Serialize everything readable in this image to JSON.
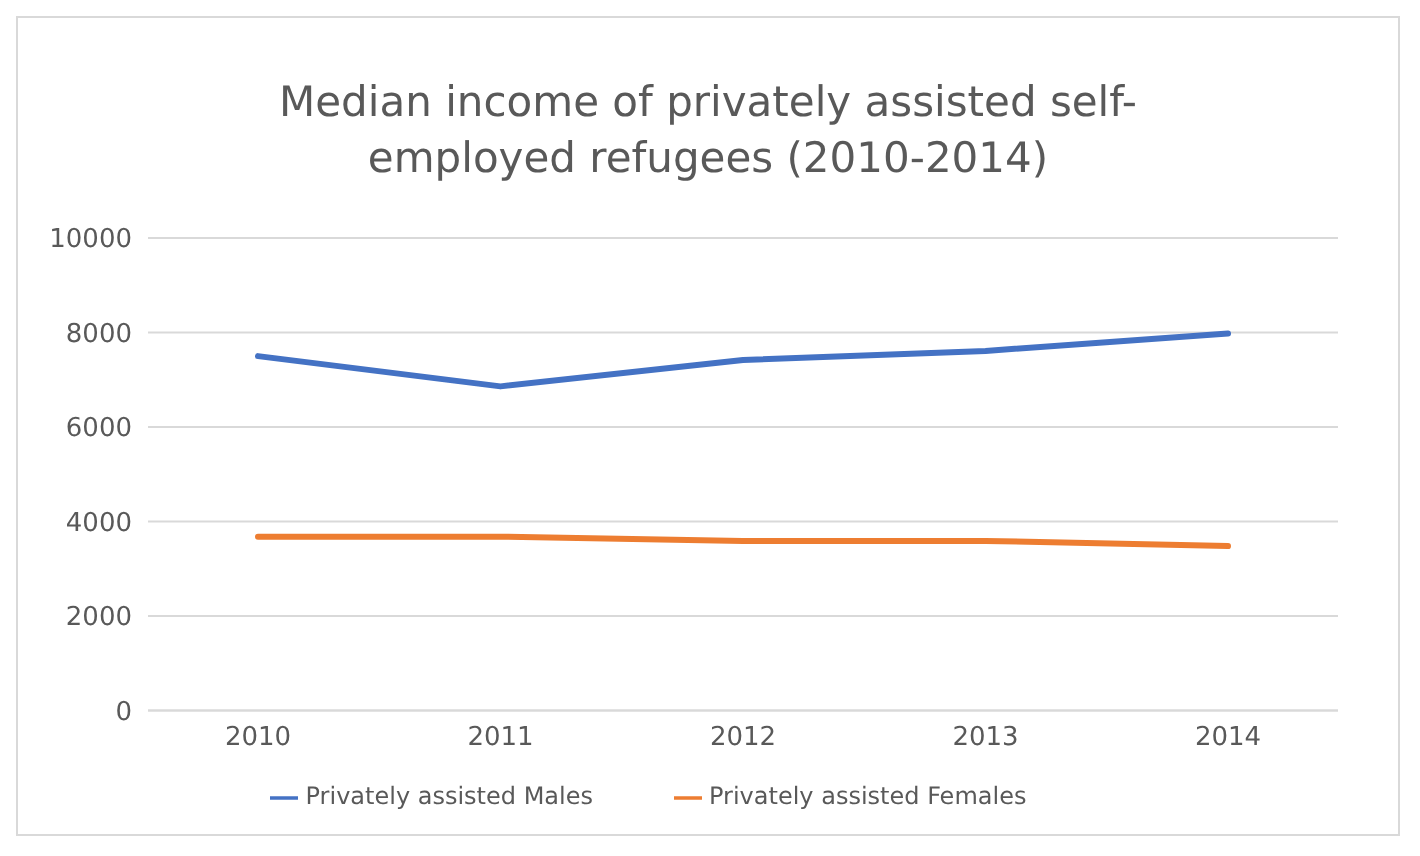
{
  "chart_data": {
    "type": "line",
    "title": "Median income of privately assisted self-employed refugees (2010-2014)",
    "categories": [
      "2010",
      "2011",
      "2012",
      "2013",
      "2014"
    ],
    "series": [
      {
        "name": "Privately assisted Males",
        "color": "#4472c4",
        "values": [
          7500,
          6860,
          7420,
          7610,
          7980
        ]
      },
      {
        "name": "Privately assisted Females",
        "color": "#ed7d31",
        "values": [
          3680,
          3680,
          3590,
          3590,
          3480
        ]
      }
    ],
    "ylim": [
      0,
      10000
    ],
    "yticks": [
      0,
      2000,
      4000,
      6000,
      8000,
      10000
    ],
    "grid": "y",
    "legend": "bottom",
    "marker": "none",
    "line_style": "solid"
  }
}
